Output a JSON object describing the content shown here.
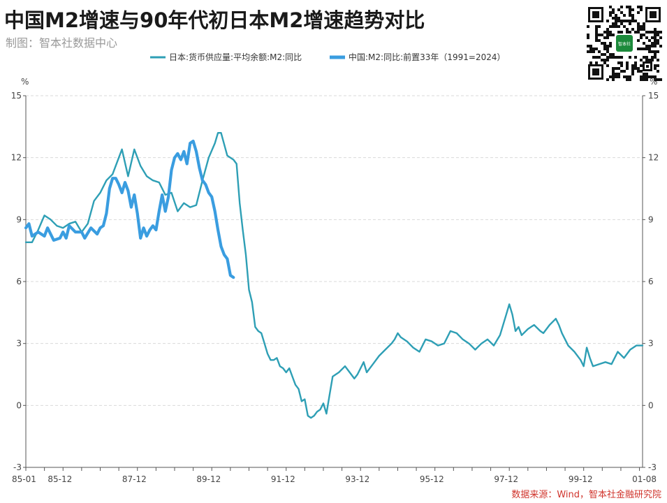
{
  "header": {
    "title": "中国M2增速与90年代初日本M2增速趋势对比",
    "subtitle": "制图：智本社数据中心",
    "source": "数据来源：Wind，智本社金融研究院"
  },
  "qr": {
    "badge_text": "智本社",
    "icon": "qr-code-icon"
  },
  "chart_data": {
    "type": "line",
    "xlabel": "",
    "ylabel": "%",
    "ylabel_right": "%",
    "ylim": [
      -3,
      15
    ],
    "yticks": [
      "-3",
      "0",
      "3",
      "6",
      "9",
      "12",
      "15"
    ],
    "xlim": [
      "1985-01",
      "2001-08"
    ],
    "xticks": [
      "85-01",
      "85-12",
      "87-12",
      "89-12",
      "91-12",
      "93-12",
      "95-12",
      "97-12",
      "99-12",
      "01-08"
    ],
    "grid": "horizontal dashed",
    "legend": "top-center",
    "series": [
      {
        "name": "日本:货币供应量:平均余额:M2:同比",
        "color": "#2e9fb5",
        "points": [
          [
            "1985-01",
            7.9
          ],
          [
            "1985-03",
            7.9
          ],
          [
            "1985-05",
            8.5
          ],
          [
            "1985-07",
            9.2
          ],
          [
            "1985-09",
            9.0
          ],
          [
            "1985-11",
            8.7
          ],
          [
            "1986-01",
            8.6
          ],
          [
            "1986-03",
            8.8
          ],
          [
            "1986-05",
            8.9
          ],
          [
            "1986-07",
            8.4
          ],
          [
            "1986-09",
            8.8
          ],
          [
            "1986-11",
            9.9
          ],
          [
            "1987-01",
            10.3
          ],
          [
            "1987-03",
            10.9
          ],
          [
            "1987-05",
            11.2
          ],
          [
            "1987-07",
            12.0
          ],
          [
            "1987-08",
            12.4
          ],
          [
            "1987-10",
            11.1
          ],
          [
            "1987-12",
            12.4
          ],
          [
            "1988-02",
            11.6
          ],
          [
            "1988-04",
            11.1
          ],
          [
            "1988-06",
            10.9
          ],
          [
            "1988-08",
            10.8
          ],
          [
            "1988-10",
            10.2
          ],
          [
            "1988-12",
            10.3
          ],
          [
            "1989-02",
            9.4
          ],
          [
            "1989-04",
            9.8
          ],
          [
            "1989-06",
            9.6
          ],
          [
            "1989-08",
            9.7
          ],
          [
            "1989-10",
            10.9
          ],
          [
            "1989-12",
            12.0
          ],
          [
            "1990-02",
            12.7
          ],
          [
            "1990-03",
            13.2
          ],
          [
            "1990-04",
            13.2
          ],
          [
            "1990-06",
            12.1
          ],
          [
            "1990-08",
            11.9
          ],
          [
            "1990-09",
            11.7
          ],
          [
            "1990-10",
            9.8
          ],
          [
            "1990-11",
            8.5
          ],
          [
            "1990-12",
            7.3
          ],
          [
            "1991-01",
            5.6
          ],
          [
            "1991-02",
            5.0
          ],
          [
            "1991-03",
            3.8
          ],
          [
            "1991-04",
            3.6
          ],
          [
            "1991-05",
            3.5
          ],
          [
            "1991-06",
            3.0
          ],
          [
            "1991-07",
            2.5
          ],
          [
            "1991-08",
            2.2
          ],
          [
            "1991-09",
            2.2
          ],
          [
            "1991-10",
            2.3
          ],
          [
            "1991-11",
            1.9
          ],
          [
            "1991-12",
            1.8
          ],
          [
            "1992-01",
            1.6
          ],
          [
            "1992-02",
            1.8
          ],
          [
            "1992-03",
            1.4
          ],
          [
            "1992-04",
            1.0
          ],
          [
            "1992-05",
            0.8
          ],
          [
            "1992-06",
            0.2
          ],
          [
            "1992-07",
            0.3
          ],
          [
            "1992-08",
            -0.5
          ],
          [
            "1992-09",
            -0.6
          ],
          [
            "1992-10",
            -0.5
          ],
          [
            "1992-11",
            -0.3
          ],
          [
            "1992-12",
            -0.2
          ],
          [
            "1993-01",
            0.1
          ],
          [
            "1993-02",
            -0.4
          ],
          [
            "1993-03",
            0.5
          ],
          [
            "1993-04",
            1.4
          ],
          [
            "1993-05",
            1.5
          ],
          [
            "1993-06",
            1.6
          ],
          [
            "1993-08",
            1.9
          ],
          [
            "1993-09",
            1.7
          ],
          [
            "1993-11",
            1.3
          ],
          [
            "1993-12",
            1.5
          ],
          [
            "1994-02",
            2.1
          ],
          [
            "1994-03",
            1.6
          ],
          [
            "1994-05",
            2.0
          ],
          [
            "1994-07",
            2.4
          ],
          [
            "1994-09",
            2.7
          ],
          [
            "1994-11",
            3.0
          ],
          [
            "1994-12",
            3.2
          ],
          [
            "1995-01",
            3.5
          ],
          [
            "1995-02",
            3.3
          ],
          [
            "1995-04",
            3.1
          ],
          [
            "1995-06",
            2.8
          ],
          [
            "1995-08",
            2.6
          ],
          [
            "1995-10",
            3.2
          ],
          [
            "1995-12",
            3.1
          ],
          [
            "1996-02",
            2.9
          ],
          [
            "1996-04",
            3.0
          ],
          [
            "1996-06",
            3.6
          ],
          [
            "1996-08",
            3.5
          ],
          [
            "1996-10",
            3.2
          ],
          [
            "1996-12",
            3.0
          ],
          [
            "1997-02",
            2.7
          ],
          [
            "1997-04",
            3.0
          ],
          [
            "1997-06",
            3.2
          ],
          [
            "1997-08",
            2.9
          ],
          [
            "1997-10",
            3.4
          ],
          [
            "1997-12",
            4.4
          ],
          [
            "1998-01",
            4.9
          ],
          [
            "1998-02",
            4.4
          ],
          [
            "1998-03",
            3.6
          ],
          [
            "1998-04",
            3.8
          ],
          [
            "1998-05",
            3.4
          ],
          [
            "1998-07",
            3.7
          ],
          [
            "1998-09",
            3.9
          ],
          [
            "1998-11",
            3.6
          ],
          [
            "1998-12",
            3.5
          ],
          [
            "1999-02",
            3.9
          ],
          [
            "1999-04",
            4.2
          ],
          [
            "1999-05",
            3.9
          ],
          [
            "1999-06",
            3.5
          ],
          [
            "1999-08",
            2.9
          ],
          [
            "1999-10",
            2.6
          ],
          [
            "1999-12",
            2.2
          ],
          [
            "2000-01",
            1.9
          ],
          [
            "2000-02",
            2.8
          ],
          [
            "2000-03",
            2.3
          ],
          [
            "2000-04",
            1.9
          ],
          [
            "2000-06",
            2.0
          ],
          [
            "2000-08",
            2.1
          ],
          [
            "2000-10",
            2.0
          ],
          [
            "2000-12",
            2.6
          ],
          [
            "2001-02",
            2.3
          ],
          [
            "2001-04",
            2.7
          ],
          [
            "2001-06",
            2.9
          ],
          [
            "2001-08",
            2.9
          ]
        ]
      },
      {
        "name": "中国:M2:同比:前置33年（1991=2024）",
        "color": "#3a9de0",
        "points": [
          [
            "1985-01",
            8.6
          ],
          [
            "1985-02",
            8.8
          ],
          [
            "1985-03",
            8.2
          ],
          [
            "1985-05",
            8.4
          ],
          [
            "1985-07",
            8.2
          ],
          [
            "1985-08",
            8.6
          ],
          [
            "1985-10",
            8.0
          ],
          [
            "1985-12",
            8.1
          ],
          [
            "1986-01",
            8.4
          ],
          [
            "1986-02",
            8.1
          ],
          [
            "1986-03",
            8.7
          ],
          [
            "1986-05",
            8.4
          ],
          [
            "1986-07",
            8.4
          ],
          [
            "1986-08",
            8.1
          ],
          [
            "1986-10",
            8.6
          ],
          [
            "1986-12",
            8.3
          ],
          [
            "1987-01",
            8.6
          ],
          [
            "1987-02",
            8.7
          ],
          [
            "1987-03",
            9.3
          ],
          [
            "1987-04",
            10.5
          ],
          [
            "1987-05",
            11.0
          ],
          [
            "1987-06",
            11.0
          ],
          [
            "1987-07",
            10.7
          ],
          [
            "1987-08",
            10.3
          ],
          [
            "1987-09",
            10.8
          ],
          [
            "1987-10",
            10.4
          ],
          [
            "1987-11",
            9.6
          ],
          [
            "1987-12",
            10.2
          ],
          [
            "1988-01",
            9.3
          ],
          [
            "1988-02",
            8.1
          ],
          [
            "1988-03",
            8.6
          ],
          [
            "1988-04",
            8.2
          ],
          [
            "1988-05",
            8.5
          ],
          [
            "1988-06",
            8.7
          ],
          [
            "1988-07",
            8.5
          ],
          [
            "1988-08",
            9.4
          ],
          [
            "1988-09",
            10.2
          ],
          [
            "1988-10",
            9.4
          ],
          [
            "1988-11",
            10.1
          ],
          [
            "1988-12",
            11.4
          ],
          [
            "1989-01",
            12.0
          ],
          [
            "1989-02",
            12.2
          ],
          [
            "1989-03",
            11.9
          ],
          [
            "1989-04",
            12.3
          ],
          [
            "1989-05",
            11.7
          ],
          [
            "1989-06",
            12.7
          ],
          [
            "1989-07",
            12.8
          ],
          [
            "1989-08",
            12.3
          ],
          [
            "1989-09",
            11.5
          ],
          [
            "1989-10",
            10.9
          ],
          [
            "1989-11",
            10.7
          ],
          [
            "1989-12",
            10.3
          ],
          [
            "1990-01",
            10.1
          ],
          [
            "1990-02",
            9.4
          ],
          [
            "1990-03",
            8.5
          ],
          [
            "1990-04",
            7.7
          ],
          [
            "1990-05",
            7.3
          ],
          [
            "1990-06",
            7.1
          ],
          [
            "1990-07",
            6.3
          ],
          [
            "1990-08",
            6.2
          ]
        ]
      }
    ]
  }
}
